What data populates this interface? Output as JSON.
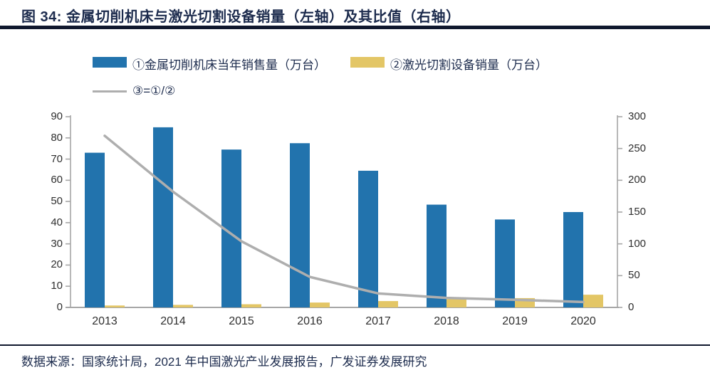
{
  "figure": {
    "number_label": "图 34:",
    "title": "图 34: 金属切削机床与激光切割设备销量（左轴）及其比值（右轴）",
    "source": "数据来源：国家统计局，2021 年中国激光产业发展报告，广发证券发展研究"
  },
  "colors": {
    "navy_text": "#1c2b4d",
    "rule": "#10182e",
    "axis": "#a6a6a6",
    "tick_text": "#2f2f2f",
    "bar_machine_tools": "#2273ad",
    "bar_laser": "#e3c666",
    "ratio_line": "#aeaeae"
  },
  "legend": {
    "items": [
      {
        "label": "①金属切削机床当年销售量（万台）",
        "color": "#2273ad",
        "type": "bar"
      },
      {
        "label": "②激光切割设备销量（万台）",
        "color": "#e3c666",
        "type": "bar"
      },
      {
        "label": "③=①/②",
        "color": "#aeaeae",
        "type": "line"
      }
    ]
  },
  "chart_data": {
    "type": "bar",
    "subtype": "combo-bar-line",
    "categories": [
      "2013",
      "2014",
      "2015",
      "2016",
      "2017",
      "2018",
      "2019",
      "2020"
    ],
    "series": [
      {
        "name": "①金属切削机床当年销售量（万台）",
        "type": "bar",
        "axis": "left",
        "color": "#2273ad",
        "values": [
          73,
          85,
          74.5,
          77.5,
          64.5,
          48.5,
          41.5,
          45
        ]
      },
      {
        "name": "②激光切割设备销量（万台）",
        "type": "bar",
        "axis": "left",
        "color": "#e3c666",
        "values": [
          0.9,
          1.2,
          1.5,
          2.3,
          3,
          3.9,
          4.4,
          6
        ]
      },
      {
        "name": "③=①/②",
        "type": "line",
        "axis": "right",
        "color": "#aeaeae",
        "values": [
          270,
          182,
          104,
          48,
          22,
          15,
          12,
          8.5
        ]
      }
    ],
    "left_axis": {
      "min": 0,
      "max": 90,
      "step": 10,
      "ticks": [
        "0",
        "10",
        "20",
        "30",
        "40",
        "50",
        "60",
        "70",
        "80",
        "90"
      ]
    },
    "right_axis": {
      "min": 0,
      "max": 300,
      "step": 50,
      "ticks": [
        "0",
        "50",
        "100",
        "150",
        "200",
        "250",
        "300"
      ]
    },
    "grid": false,
    "legend_position": "top-left",
    "title": "金属切削机床与激光切割设备销量（左轴）及其比值（右轴）"
  }
}
